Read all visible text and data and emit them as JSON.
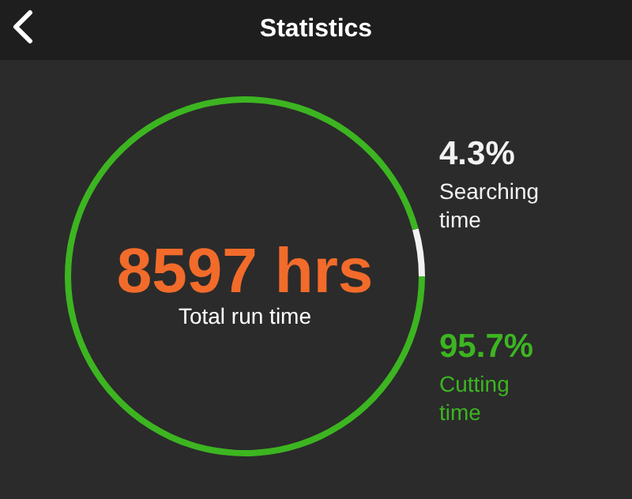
{
  "chart_data": {
    "type": "donut",
    "title": "Statistics",
    "categories": [
      "Searching time",
      "Cutting time"
    ],
    "values": [
      4.3,
      95.7
    ],
    "colors": [
      "#f2f2f2",
      "#3cb521"
    ],
    "value_labels": [
      "4.3%",
      "95.7%"
    ],
    "annotations": [
      "8597 hrs",
      "Total run time"
    ]
  }
}
